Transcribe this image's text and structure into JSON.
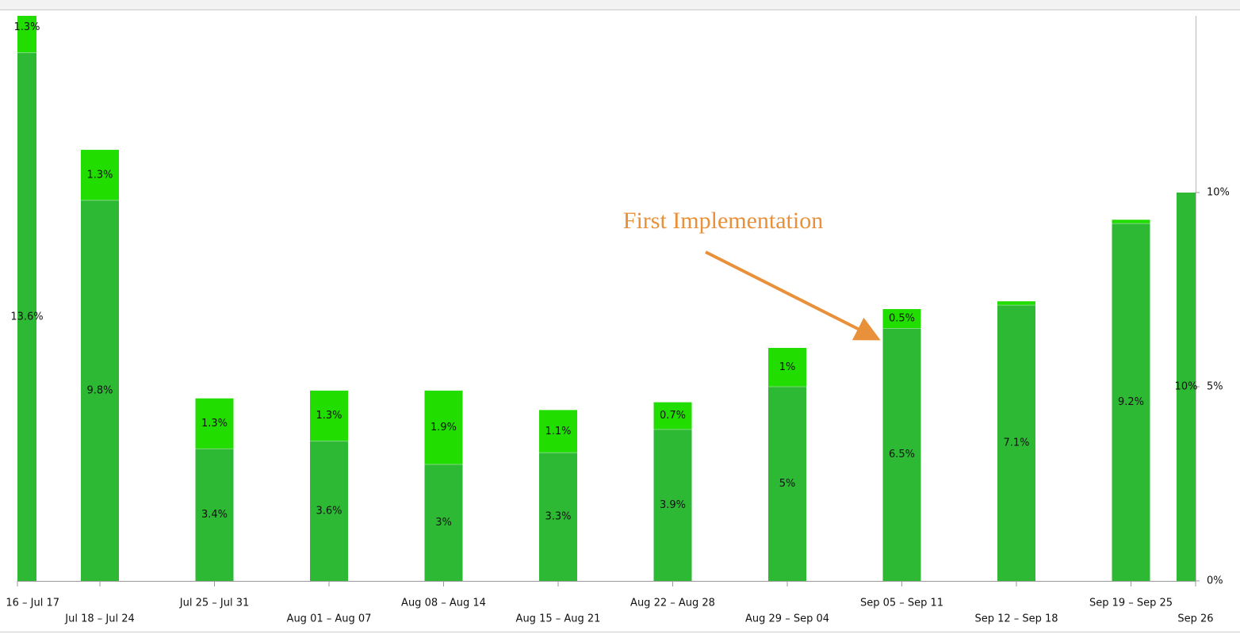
{
  "chart_data": {
    "type": "stacked-bar",
    "annotation": "First Implementation",
    "categories": [
      "16 – Jul 17",
      "Jul 18 – Jul 24",
      "Jul 25 – Jul 31",
      "Aug 01 – Aug 07",
      "Aug 08 – Aug 14",
      "Aug 15 – Aug 21",
      "Aug 22 – Aug 28",
      "Aug 29 – Sep 04",
      "Sep 05 – Sep 11",
      "Sep 12 – Sep 18",
      "Sep 19 – Sep 25",
      "Sep 26"
    ],
    "series": [
      {
        "color": "#2eb935",
        "values": [
          13.6,
          9.8,
          3.4,
          3.6,
          3,
          3.3,
          3.9,
          5,
          6.5,
          7.1,
          9.2,
          10
        ],
        "value_labels": [
          "13.6%",
          "9.8%",
          "3.4%",
          "3.6%",
          "3%",
          "3.3%",
          "3.9%",
          "5%",
          "6.5%",
          "7.1%",
          "9.2%",
          "10%"
        ]
      },
      {
        "color": "#22dd00",
        "values": [
          1.3,
          1.3,
          1.3,
          1.3,
          1.9,
          1.1,
          0.7,
          1,
          0.5,
          0.1,
          0.1,
          null
        ],
        "value_labels": [
          "1.3%",
          "1.3%",
          "1.3%",
          "1.3%",
          "1.9%",
          "1.1%",
          "0.7%",
          "1%",
          "0.5%",
          null,
          null,
          null
        ]
      }
    ],
    "ylim": [
      0,
      14.55
    ],
    "yticks": [
      {
        "value": 0,
        "label": "0%"
      },
      {
        "value": 5,
        "label": "5%"
      },
      {
        "value": 10,
        "label": "10%"
      }
    ],
    "y_axis_side": "right"
  }
}
